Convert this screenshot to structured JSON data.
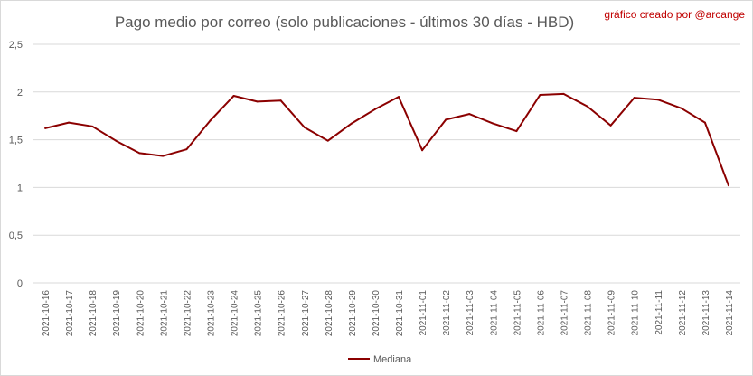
{
  "title": "Pago medio por correo (solo publicaciones - últimos 30 días - HBD)",
  "credit": "gráfico creado por @arcange",
  "chart_data": {
    "type": "line",
    "title": "Pago medio por correo (solo publicaciones - últimos 30 días - HBD)",
    "xlabel": "",
    "ylabel": "",
    "ylim": [
      0,
      2.5
    ],
    "yticks": [
      "0",
      "0,5",
      "1",
      "1,5",
      "2",
      "2,5"
    ],
    "grid": true,
    "legend_position": "bottom",
    "categories": [
      "2021-10-16",
      "2021-10-17",
      "2021-10-18",
      "2021-10-19",
      "2021-10-20",
      "2021-10-21",
      "2021-10-22",
      "2021-10-23",
      "2021-10-24",
      "2021-10-25",
      "2021-10-26",
      "2021-10-27",
      "2021-10-28",
      "2021-10-29",
      "2021-10-30",
      "2021-10-31",
      "2021-11-01",
      "2021-11-02",
      "2021-11-03",
      "2021-11-04",
      "2021-11-05",
      "2021-11-06",
      "2021-11-07",
      "2021-11-08",
      "2021-11-09",
      "2021-11-10",
      "2021-11-11",
      "2021-11-12",
      "2021-11-13",
      "2021-11-14"
    ],
    "series": [
      {
        "name": "Mediana",
        "color": "#8b0000",
        "values": [
          1.62,
          1.68,
          1.64,
          1.49,
          1.36,
          1.33,
          1.4,
          1.7,
          1.96,
          1.9,
          1.91,
          1.63,
          1.49,
          1.67,
          1.82,
          1.95,
          1.39,
          1.71,
          1.77,
          1.67,
          1.59,
          1.97,
          1.98,
          1.85,
          1.65,
          1.94,
          1.92,
          1.83,
          1.68,
          1.02
        ]
      }
    ]
  }
}
